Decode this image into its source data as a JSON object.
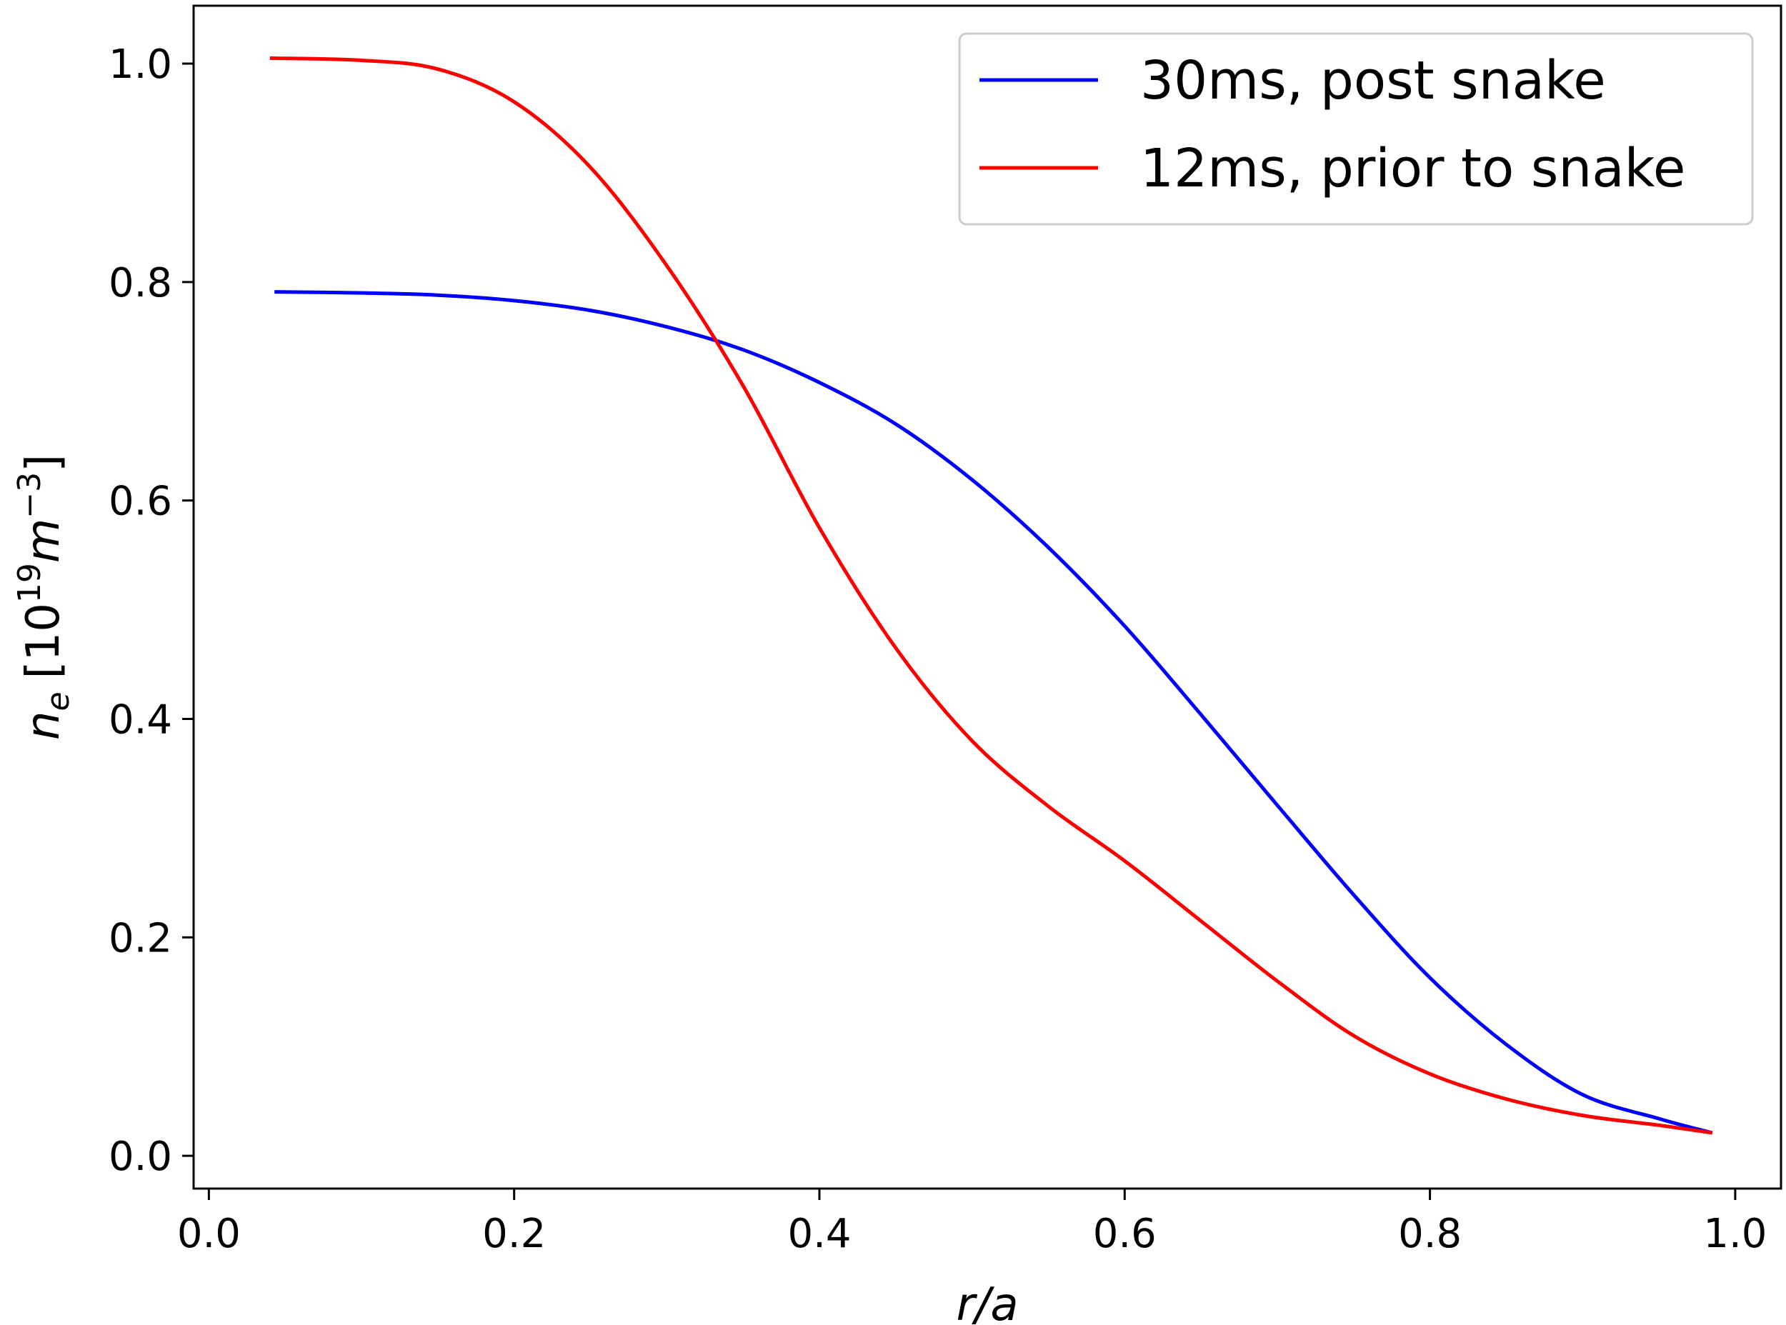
{
  "chart_data": {
    "type": "line",
    "xlabel_var": "r/a",
    "ylabel_var": "n",
    "ylabel_subscript": "e",
    "ylabel_unit_open": "[10",
    "ylabel_exp": "19",
    "ylabel_unit_var": "m",
    "ylabel_unit_exp": "−3",
    "ylabel_unit_close": "]",
    "xlim": [
      -0.01,
      1.03
    ],
    "ylim": [
      -0.03,
      1.053
    ],
    "xticks": [
      0.0,
      0.2,
      0.4,
      0.6,
      0.8,
      1.0
    ],
    "xtick_labels": [
      "0.0",
      "0.2",
      "0.4",
      "0.6",
      "0.8",
      "1.0"
    ],
    "yticks": [
      0.0,
      0.2,
      0.4,
      0.6,
      0.8,
      1.0
    ],
    "ytick_labels": [
      "0.0",
      "0.2",
      "0.4",
      "0.6",
      "0.8",
      "1.0"
    ],
    "grid": false,
    "legend_position": "top-right",
    "series": [
      {
        "name": "30ms, post snake",
        "color": "#0000ff",
        "x": [
          0.043,
          0.1,
          0.15,
          0.2,
          0.25,
          0.3,
          0.35,
          0.4,
          0.45,
          0.5,
          0.55,
          0.6,
          0.65,
          0.7,
          0.75,
          0.8,
          0.85,
          0.9,
          0.95,
          0.985
        ],
        "y": [
          0.791,
          0.79,
          0.788,
          0.783,
          0.774,
          0.759,
          0.738,
          0.708,
          0.67,
          0.619,
          0.557,
          0.485,
          0.404,
          0.321,
          0.239,
          0.163,
          0.102,
          0.056,
          0.034,
          0.021
        ]
      },
      {
        "name": "12ms, prior to snake",
        "color": "#ff0000",
        "x": [
          0.04,
          0.1,
          0.15,
          0.2,
          0.25,
          0.3,
          0.35,
          0.4,
          0.45,
          0.5,
          0.55,
          0.6,
          0.65,
          0.7,
          0.75,
          0.8,
          0.85,
          0.9,
          0.95,
          0.985
        ],
        "y": [
          1.005,
          1.003,
          0.995,
          0.965,
          0.905,
          0.815,
          0.705,
          0.575,
          0.465,
          0.38,
          0.32,
          0.27,
          0.215,
          0.16,
          0.11,
          0.075,
          0.052,
          0.037,
          0.028,
          0.021
        ]
      }
    ]
  }
}
